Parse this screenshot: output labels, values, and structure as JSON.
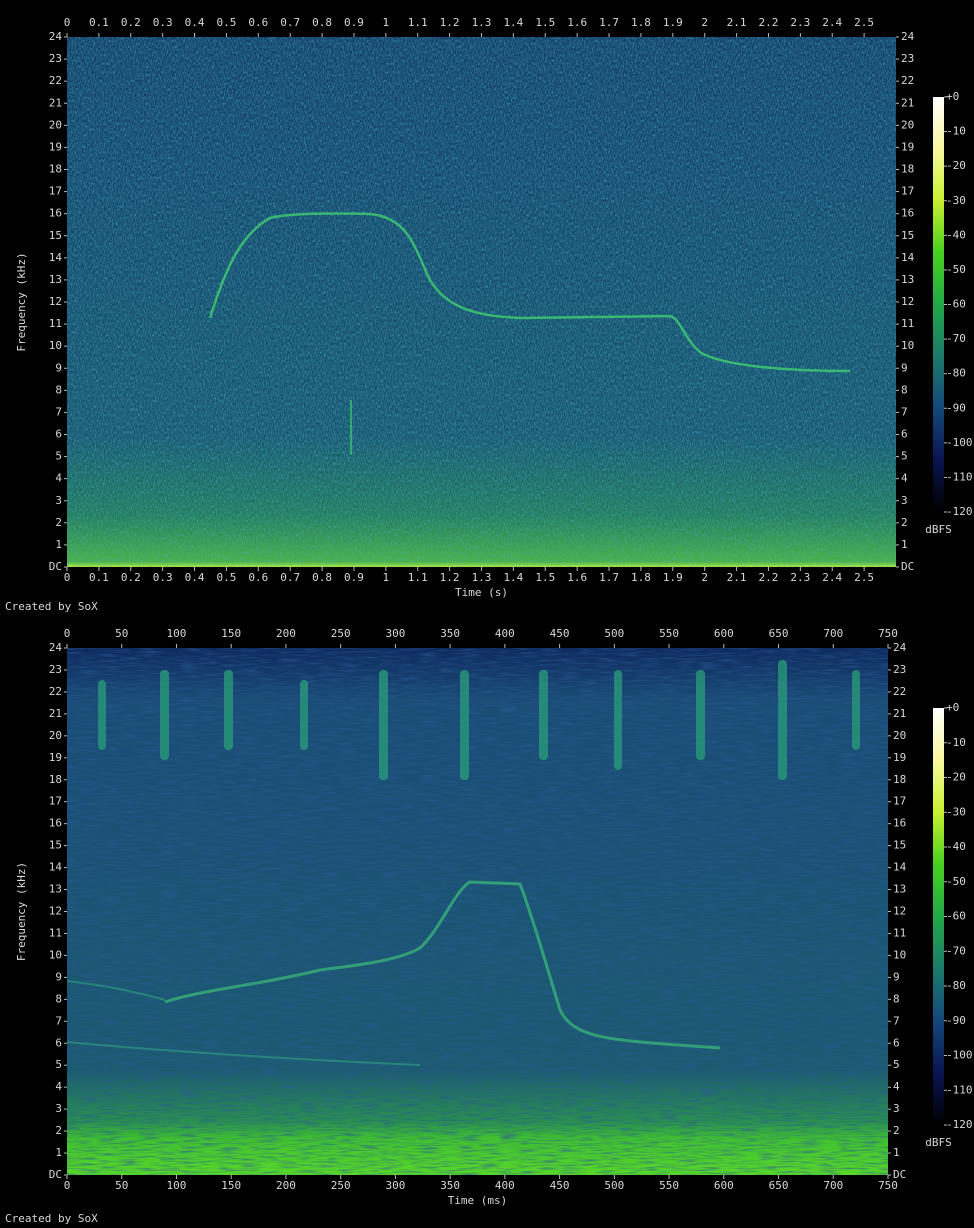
{
  "chart_data": [
    {
      "type": "spectrogram",
      "x_label": "Time (s)",
      "y_label": "Frequency (kHz)",
      "footer": "Created by SoX",
      "xlim": [
        0,
        2.6
      ],
      "xticks": [
        0,
        0.1,
        0.2,
        0.3,
        0.4,
        0.5,
        0.6,
        0.7,
        0.8,
        0.9,
        1,
        1.1,
        1.2,
        1.3,
        1.4,
        1.5,
        1.6,
        1.7,
        1.8,
        1.9,
        2,
        2.1,
        2.2,
        2.3,
        2.4,
        2.5
      ],
      "ylim": [
        0,
        24
      ],
      "yticks": [
        {
          "value": 0,
          "label": "DC"
        },
        1,
        2,
        3,
        4,
        5,
        6,
        7,
        8,
        9,
        10,
        11,
        12,
        13,
        14,
        15,
        16,
        17,
        18,
        19,
        20,
        21,
        22,
        23,
        24
      ],
      "colorbar": {
        "label": "dBFS",
        "lim": [
          -120,
          0
        ],
        "ticks": [
          {
            "value": 0,
            "label": "+0"
          },
          -10,
          -20,
          -30,
          -40,
          -50,
          -60,
          -70,
          -80,
          -90,
          -100,
          -110,
          -120
        ],
        "colors": [
          "#000000",
          "#0a1450",
          "#14487a",
          "#1c7a6a",
          "#22a848",
          "#48d020",
          "#c8f030",
          "#f8f8a0",
          "#ffffff"
        ]
      }
    },
    {
      "type": "spectrogram",
      "x_label": "Time (ms)",
      "y_label": "Frequency (kHz)",
      "footer": "Created by SoX",
      "xlim": [
        0,
        750
      ],
      "xticks": [
        0,
        50,
        100,
        150,
        200,
        250,
        300,
        350,
        400,
        450,
        500,
        550,
        600,
        650,
        700,
        750
      ],
      "ylim": [
        0,
        24
      ],
      "yticks": [
        {
          "value": 0,
          "label": "DC"
        },
        1,
        2,
        3,
        4,
        5,
        6,
        7,
        8,
        9,
        10,
        11,
        12,
        13,
        14,
        15,
        16,
        17,
        18,
        19,
        20,
        21,
        22,
        23,
        24
      ],
      "colorbar": {
        "label": "dBFS",
        "lim": [
          -120,
          0
        ],
        "ticks": [
          {
            "value": 0,
            "label": "+0"
          },
          -10,
          -20,
          -30,
          -40,
          -50,
          -60,
          -70,
          -80,
          -90,
          -100,
          -110,
          -120
        ],
        "colors": [
          "#000000",
          "#0a1450",
          "#14487a",
          "#1c7a6a",
          "#22a848",
          "#48d020",
          "#c8f030",
          "#f8f8a0",
          "#ffffff"
        ]
      }
    }
  ]
}
